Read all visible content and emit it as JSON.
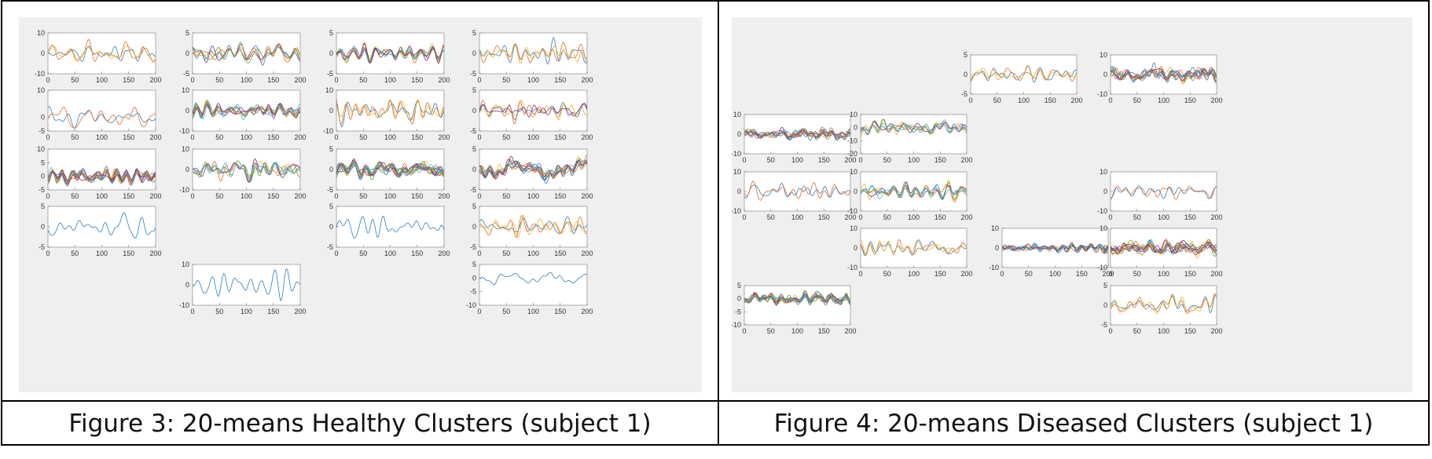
{
  "captions": {
    "left": "Figure 3: 20-means Healthy Clusters (subject 1)",
    "right": "Figure 4: 20-means Diseased Clusters (subject 1)"
  },
  "colors": [
    "#2f7ebc",
    "#e26b2a",
    "#e8b22b",
    "#7b3294",
    "#5aa636",
    "#4cb6e0",
    "#a3263a",
    "#888888"
  ],
  "chart_data": [
    {
      "type": "line",
      "figure": "left",
      "x_ticks": [
        0,
        50,
        100,
        150,
        200
      ],
      "panels": [
        {
          "ticks": [
            10,
            0,
            -10
          ],
          "ylim": [
            -10,
            10
          ],
          "n_series": 3,
          "amp": 3
        },
        {
          "ticks": [
            5,
            0,
            -5
          ],
          "ylim": [
            -5,
            5
          ],
          "n_series": 5,
          "amp": 1.8
        },
        {
          "ticks": [
            5,
            0,
            -5
          ],
          "ylim": [
            -5,
            5
          ],
          "n_series": 7,
          "amp": 1.4
        },
        {
          "ticks": [
            5,
            0,
            -5
          ],
          "ylim": [
            -5,
            5
          ],
          "n_series": 3,
          "amp": 1.8
        },
        {
          "ticks": [
            10,
            0,
            -5
          ],
          "ylim": [
            -5,
            10
          ],
          "n_series": 2,
          "amp": 3.5
        },
        {
          "ticks": [
            10,
            0,
            -10
          ],
          "ylim": [
            -10,
            10
          ],
          "n_series": 8,
          "amp": 3
        },
        {
          "ticks": [
            10,
            0,
            -10
          ],
          "ylim": [
            -10,
            10
          ],
          "n_series": 3,
          "amp": 4.5
        },
        {
          "ticks": [
            5,
            0,
            -5
          ],
          "ylim": [
            -5,
            5
          ],
          "n_series": 4,
          "amp": 1.8
        },
        {
          "ticks": [
            10,
            5,
            0,
            -5
          ],
          "ylim": [
            -5,
            10
          ],
          "n_series": 12,
          "amp": 2.2
        },
        {
          "ticks": [
            10,
            0,
            -10
          ],
          "ylim": [
            -10,
            10
          ],
          "n_series": 6,
          "amp": 3.5
        },
        {
          "ticks": [
            5,
            0,
            -5
          ],
          "ylim": [
            -5,
            5
          ],
          "n_series": 14,
          "amp": 1.6
        },
        {
          "ticks": [
            5,
            0,
            -5
          ],
          "ylim": [
            -5,
            5
          ],
          "n_series": 10,
          "amp": 1.6
        },
        {
          "ticks": [
            5,
            0,
            -5
          ],
          "ylim": [
            -5,
            5
          ],
          "n_series": 1,
          "amp": 1.8
        },
        {
          "ticks": [
            5,
            0,
            -5
          ],
          "ylim": [
            -5,
            5
          ],
          "n_series": 1,
          "amp": 2
        },
        {
          "ticks": [
            5,
            0,
            -5
          ],
          "ylim": [
            -5,
            5
          ],
          "n_series": 3,
          "amp": 1.8
        },
        {
          "ticks": [
            10,
            0,
            -10
          ],
          "ylim": [
            -10,
            10
          ],
          "n_series": 1,
          "amp": 4
        },
        {
          "ticks": [
            5,
            0,
            -5,
            -10
          ],
          "ylim": [
            -10,
            5
          ],
          "n_series": 1,
          "amp": 2.2
        }
      ]
    },
    {
      "type": "line",
      "figure": "right",
      "x_ticks": [
        0,
        50,
        100,
        150,
        200
      ],
      "panels": [
        {
          "ticks": [
            5,
            0,
            -5
          ],
          "ylim": [
            -5,
            5
          ],
          "n_series": 3,
          "amp": 1.8
        },
        {
          "ticks": [
            10,
            0,
            -10
          ],
          "ylim": [
            -10,
            10
          ],
          "n_series": 10,
          "amp": 3.5
        },
        {
          "ticks": [
            10,
            0,
            -10
          ],
          "ylim": [
            -10,
            10
          ],
          "n_series": 10,
          "amp": 2.5
        },
        {
          "ticks": [
            10,
            0,
            -10,
            -20
          ],
          "ylim": [
            -20,
            10
          ],
          "n_series": 6,
          "amp": 4
        },
        {
          "ticks": [
            10,
            0,
            -10
          ],
          "ylim": [
            -10,
            10
          ],
          "n_series": 2,
          "amp": 3
        },
        {
          "ticks": [
            10,
            0,
            -10
          ],
          "ylim": [
            -10,
            10
          ],
          "n_series": 6,
          "amp": 3
        },
        {
          "ticks": [
            10,
            0,
            -10
          ],
          "ylim": [
            -10,
            10
          ],
          "n_series": 2,
          "amp": 3
        },
        {
          "ticks": [
            10,
            0,
            -10
          ],
          "ylim": [
            -10,
            10
          ],
          "n_series": 3,
          "amp": 3
        },
        {
          "ticks": [
            10,
            0,
            -10
          ],
          "ylim": [
            -10,
            10
          ],
          "n_series": 9,
          "amp": 2
        },
        {
          "ticks": [
            10,
            0,
            -10
          ],
          "ylim": [
            -10,
            10
          ],
          "n_series": 12,
          "amp": 3
        },
        {
          "ticks": [
            5,
            0,
            -5,
            -10
          ],
          "ylim": [
            -10,
            5
          ],
          "n_series": 14,
          "amp": 1.6
        },
        {
          "ticks": [
            5,
            0,
            -5
          ],
          "ylim": [
            -5,
            5
          ],
          "n_series": 3,
          "amp": 1.8
        }
      ]
    }
  ]
}
